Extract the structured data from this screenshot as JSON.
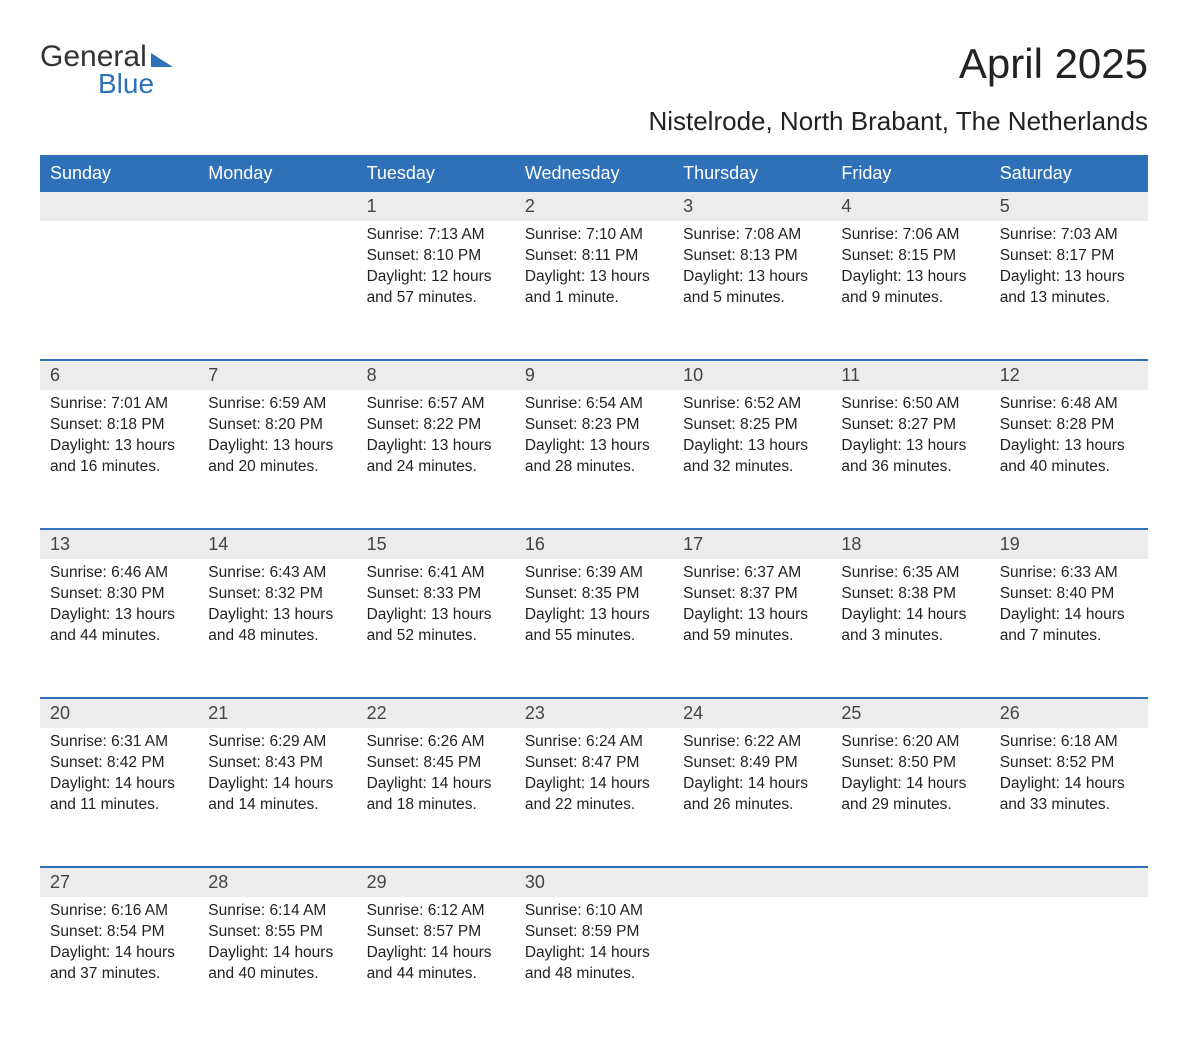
{
  "brand": {
    "word1": "General",
    "word2": "Blue"
  },
  "title": "April 2025",
  "location": "Nistelrode, North Brabant, The Netherlands",
  "colors": {
    "header_bg": "#2f71b8",
    "header_text": "#ffffff",
    "daynum_bg": "#ececec",
    "text": "#222222",
    "week_divider": "#2f71b8"
  },
  "fonts": {
    "title_size": 42,
    "location_size": 26,
    "dayheader_size": 18,
    "body_size": 15.5
  },
  "day_headers": [
    "Sunday",
    "Monday",
    "Tuesday",
    "Wednesday",
    "Thursday",
    "Friday",
    "Saturday"
  ],
  "weeks": [
    [
      null,
      null,
      {
        "n": "1",
        "sr": "Sunrise: 7:13 AM",
        "ss": "Sunset: 8:10 PM",
        "dl1": "Daylight: 12 hours",
        "dl2": "and 57 minutes."
      },
      {
        "n": "2",
        "sr": "Sunrise: 7:10 AM",
        "ss": "Sunset: 8:11 PM",
        "dl1": "Daylight: 13 hours",
        "dl2": "and 1 minute."
      },
      {
        "n": "3",
        "sr": "Sunrise: 7:08 AM",
        "ss": "Sunset: 8:13 PM",
        "dl1": "Daylight: 13 hours",
        "dl2": "and 5 minutes."
      },
      {
        "n": "4",
        "sr": "Sunrise: 7:06 AM",
        "ss": "Sunset: 8:15 PM",
        "dl1": "Daylight: 13 hours",
        "dl2": "and 9 minutes."
      },
      {
        "n": "5",
        "sr": "Sunrise: 7:03 AM",
        "ss": "Sunset: 8:17 PM",
        "dl1": "Daylight: 13 hours",
        "dl2": "and 13 minutes."
      }
    ],
    [
      {
        "n": "6",
        "sr": "Sunrise: 7:01 AM",
        "ss": "Sunset: 8:18 PM",
        "dl1": "Daylight: 13 hours",
        "dl2": "and 16 minutes."
      },
      {
        "n": "7",
        "sr": "Sunrise: 6:59 AM",
        "ss": "Sunset: 8:20 PM",
        "dl1": "Daylight: 13 hours",
        "dl2": "and 20 minutes."
      },
      {
        "n": "8",
        "sr": "Sunrise: 6:57 AM",
        "ss": "Sunset: 8:22 PM",
        "dl1": "Daylight: 13 hours",
        "dl2": "and 24 minutes."
      },
      {
        "n": "9",
        "sr": "Sunrise: 6:54 AM",
        "ss": "Sunset: 8:23 PM",
        "dl1": "Daylight: 13 hours",
        "dl2": "and 28 minutes."
      },
      {
        "n": "10",
        "sr": "Sunrise: 6:52 AM",
        "ss": "Sunset: 8:25 PM",
        "dl1": "Daylight: 13 hours",
        "dl2": "and 32 minutes."
      },
      {
        "n": "11",
        "sr": "Sunrise: 6:50 AM",
        "ss": "Sunset: 8:27 PM",
        "dl1": "Daylight: 13 hours",
        "dl2": "and 36 minutes."
      },
      {
        "n": "12",
        "sr": "Sunrise: 6:48 AM",
        "ss": "Sunset: 8:28 PM",
        "dl1": "Daylight: 13 hours",
        "dl2": "and 40 minutes."
      }
    ],
    [
      {
        "n": "13",
        "sr": "Sunrise: 6:46 AM",
        "ss": "Sunset: 8:30 PM",
        "dl1": "Daylight: 13 hours",
        "dl2": "and 44 minutes."
      },
      {
        "n": "14",
        "sr": "Sunrise: 6:43 AM",
        "ss": "Sunset: 8:32 PM",
        "dl1": "Daylight: 13 hours",
        "dl2": "and 48 minutes."
      },
      {
        "n": "15",
        "sr": "Sunrise: 6:41 AM",
        "ss": "Sunset: 8:33 PM",
        "dl1": "Daylight: 13 hours",
        "dl2": "and 52 minutes."
      },
      {
        "n": "16",
        "sr": "Sunrise: 6:39 AM",
        "ss": "Sunset: 8:35 PM",
        "dl1": "Daylight: 13 hours",
        "dl2": "and 55 minutes."
      },
      {
        "n": "17",
        "sr": "Sunrise: 6:37 AM",
        "ss": "Sunset: 8:37 PM",
        "dl1": "Daylight: 13 hours",
        "dl2": "and 59 minutes."
      },
      {
        "n": "18",
        "sr": "Sunrise: 6:35 AM",
        "ss": "Sunset: 8:38 PM",
        "dl1": "Daylight: 14 hours",
        "dl2": "and 3 minutes."
      },
      {
        "n": "19",
        "sr": "Sunrise: 6:33 AM",
        "ss": "Sunset: 8:40 PM",
        "dl1": "Daylight: 14 hours",
        "dl2": "and 7 minutes."
      }
    ],
    [
      {
        "n": "20",
        "sr": "Sunrise: 6:31 AM",
        "ss": "Sunset: 8:42 PM",
        "dl1": "Daylight: 14 hours",
        "dl2": "and 11 minutes."
      },
      {
        "n": "21",
        "sr": "Sunrise: 6:29 AM",
        "ss": "Sunset: 8:43 PM",
        "dl1": "Daylight: 14 hours",
        "dl2": "and 14 minutes."
      },
      {
        "n": "22",
        "sr": "Sunrise: 6:26 AM",
        "ss": "Sunset: 8:45 PM",
        "dl1": "Daylight: 14 hours",
        "dl2": "and 18 minutes."
      },
      {
        "n": "23",
        "sr": "Sunrise: 6:24 AM",
        "ss": "Sunset: 8:47 PM",
        "dl1": "Daylight: 14 hours",
        "dl2": "and 22 minutes."
      },
      {
        "n": "24",
        "sr": "Sunrise: 6:22 AM",
        "ss": "Sunset: 8:49 PM",
        "dl1": "Daylight: 14 hours",
        "dl2": "and 26 minutes."
      },
      {
        "n": "25",
        "sr": "Sunrise: 6:20 AM",
        "ss": "Sunset: 8:50 PM",
        "dl1": "Daylight: 14 hours",
        "dl2": "and 29 minutes."
      },
      {
        "n": "26",
        "sr": "Sunrise: 6:18 AM",
        "ss": "Sunset: 8:52 PM",
        "dl1": "Daylight: 14 hours",
        "dl2": "and 33 minutes."
      }
    ],
    [
      {
        "n": "27",
        "sr": "Sunrise: 6:16 AM",
        "ss": "Sunset: 8:54 PM",
        "dl1": "Daylight: 14 hours",
        "dl2": "and 37 minutes."
      },
      {
        "n": "28",
        "sr": "Sunrise: 6:14 AM",
        "ss": "Sunset: 8:55 PM",
        "dl1": "Daylight: 14 hours",
        "dl2": "and 40 minutes."
      },
      {
        "n": "29",
        "sr": "Sunrise: 6:12 AM",
        "ss": "Sunset: 8:57 PM",
        "dl1": "Daylight: 14 hours",
        "dl2": "and 44 minutes."
      },
      {
        "n": "30",
        "sr": "Sunrise: 6:10 AM",
        "ss": "Sunset: 8:59 PM",
        "dl1": "Daylight: 14 hours",
        "dl2": "and 48 minutes."
      },
      null,
      null,
      null
    ]
  ]
}
